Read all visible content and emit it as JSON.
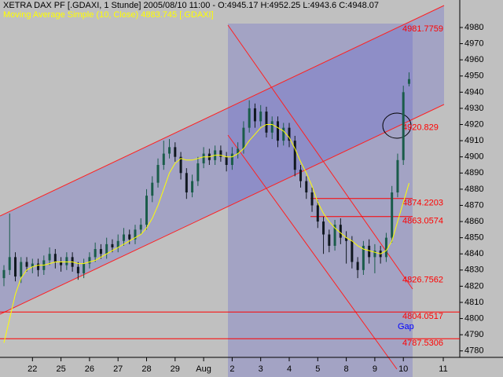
{
  "chart_data": {
    "type": "candlestick",
    "title": "XETRA DAX PF [.GDAXI, 1 Stunde] 2005/08/10 11:00 - O:4945.17 H:4952.25 L:4943.6 C:4948.07",
    "subtitle": "Moving Average Simple (10, Close) 4883.745 [.GDAXI]",
    "categories": [
      null,
      null,
      null,
      null,
      null,
      "22",
      null,
      null,
      null,
      null,
      "25",
      null,
      null,
      null,
      null,
      "26",
      null,
      null,
      null,
      null,
      "27",
      null,
      null,
      null,
      null,
      "28",
      null,
      null,
      null,
      null,
      "29",
      null,
      null,
      null,
      null,
      "Aug",
      null,
      null,
      null,
      null,
      "2",
      null,
      null,
      null,
      null,
      "3",
      null,
      null,
      null,
      null,
      "4",
      null,
      null,
      null,
      null,
      "5",
      null,
      null,
      null,
      null,
      "8",
      null,
      null,
      null,
      null,
      "9",
      null,
      null,
      null,
      null,
      "10",
      null,
      null,
      null,
      null,
      null,
      null,
      "11",
      null
    ],
    "open": [
      4825,
      4830,
      4838,
      4826,
      4835,
      4832,
      4834,
      4830,
      4836,
      4840,
      4835,
      4833,
      4838,
      4832,
      4828,
      4834,
      4838,
      4843,
      4840,
      4846,
      4844,
      4848,
      4852,
      4849,
      4855,
      4858,
      4876,
      4884,
      4895,
      4902,
      4906,
      4900,
      4890,
      4878,
      4885,
      4896,
      4902,
      4898,
      4904,
      4900,
      4895,
      4902,
      4905,
      4918,
      4930,
      4922,
      4928,
      4915,
      4922,
      4910,
      4918,
      4910,
      4892,
      4885,
      4878,
      4870,
      4860,
      4852,
      4845,
      4858,
      4850,
      4848,
      4835,
      4830,
      4845,
      4838,
      4842,
      4838,
      4850,
      4878,
      4898,
      4945.17,
      null,
      null,
      null,
      null,
      null,
      null,
      null
    ],
    "high": [
      4833,
      4865,
      4841,
      4838,
      4838,
      4837,
      4837,
      4839,
      4844,
      4843,
      4838,
      4841,
      4841,
      4835,
      4837,
      4841,
      4847,
      4846,
      4850,
      4849,
      4852,
      4856,
      4855,
      4858,
      4862,
      4880,
      4888,
      4899,
      4910,
      4911,
      4909,
      4903,
      4893,
      4889,
      4900,
      4906,
      4905,
      4907,
      4907,
      4903,
      4906,
      4909,
      4922,
      4935,
      4933,
      4932,
      4931,
      4925,
      4925,
      4921,
      4921,
      4913,
      4895,
      4888,
      4881,
      4873,
      4863,
      4855,
      4861,
      4862,
      4854,
      4851,
      4838,
      4848,
      4849,
      4846,
      4845,
      4853,
      4882,
      4902,
      4944,
      4952.25,
      null,
      null,
      null,
      null,
      null,
      null,
      null
    ],
    "low": [
      4820,
      4827,
      4823,
      4822,
      4829,
      4828,
      4826,
      4827,
      4833,
      4831,
      4829,
      4830,
      4829,
      4824,
      4825,
      4831,
      4835,
      4837,
      4837,
      4841,
      4841,
      4845,
      4846,
      4846,
      4852,
      4855,
      4872,
      4881,
      4892,
      4899,
      4897,
      4886,
      4874,
      4875,
      4882,
      4893,
      4895,
      4895,
      4897,
      4891,
      4892,
      4899,
      4902,
      4915,
      4918,
      4919,
      4912,
      4911,
      4906,
      4907,
      4906,
      4888,
      4881,
      4874,
      4866,
      4856,
      4840,
      4841,
      4842,
      4846,
      4834,
      4831,
      4825,
      4827,
      4834,
      4828,
      4834,
      4835,
      4847,
      4875,
      4895,
      4943.6,
      null,
      null,
      null,
      null,
      null,
      null,
      null
    ],
    "close": [
      4830,
      4838,
      4826,
      4835,
      4832,
      4834,
      4830,
      4836,
      4840,
      4835,
      4833,
      4838,
      4832,
      4828,
      4834,
      4838,
      4843,
      4840,
      4846,
      4844,
      4848,
      4852,
      4849,
      4855,
      4858,
      4876,
      4884,
      4895,
      4902,
      4906,
      4900,
      4890,
      4878,
      4885,
      4896,
      4902,
      4898,
      4904,
      4900,
      4895,
      4902,
      4905,
      4918,
      4930,
      4922,
      4928,
      4915,
      4922,
      4910,
      4918,
      4910,
      4892,
      4885,
      4878,
      4870,
      4860,
      4852,
      4845,
      4858,
      4850,
      4848,
      4835,
      4830,
      4845,
      4838,
      4842,
      4838,
      4850,
      4878,
      4898,
      4940,
      4948.07,
      null,
      null,
      null,
      null,
      null,
      null,
      null
    ],
    "up_color": "#1a5c4a",
    "down_color": "#101820",
    "ma": {
      "color": "#ffff00",
      "values": [
        4785,
        4800,
        4815,
        4825,
        4830,
        4832,
        4833,
        4833,
        4834,
        4835,
        4835,
        4835,
        4835,
        4834,
        4834,
        4835,
        4836,
        4838,
        4840,
        4842,
        4844,
        4846,
        4848,
        4850,
        4852,
        4856,
        4862,
        4870,
        4880,
        4890,
        4896,
        4899,
        4898,
        4898,
        4899,
        4900,
        4900,
        4901,
        4901,
        4900,
        4900,
        4902,
        4905,
        4910,
        4914,
        4918,
        4920,
        4920,
        4918,
        4916,
        4912,
        4905,
        4897,
        4890,
        4882,
        4872,
        4865,
        4860,
        4856,
        4853,
        4850,
        4848,
        4845,
        4843,
        4842,
        4841,
        4840,
        4842,
        4848,
        4860,
        4872,
        4883.745,
        null,
        null,
        null,
        null,
        null,
        null,
        null
      ]
    },
    "levels": [
      {
        "value": 4981.7759,
        "line": "none"
      },
      {
        "value": 4920.829,
        "line": "none"
      },
      {
        "value": 4874.2203,
        "line": "partial"
      },
      {
        "value": 4863.0574,
        "line": "partial"
      },
      {
        "value": 4826.7562,
        "line": "none"
      },
      {
        "value": 4804.0517,
        "line": "full"
      },
      {
        "value": 4787.5306,
        "line": "full"
      }
    ],
    "level_color": "#ff0000",
    "gap_label": "Gap",
    "ylim": [
      4776,
      4997
    ],
    "yticks": [
      4780,
      4790,
      4800,
      4810,
      4820,
      4830,
      4840,
      4850,
      4860,
      4870,
      4880,
      4890,
      4900,
      4910,
      4920,
      4930,
      4940,
      4950,
      4960,
      4970,
      4980
    ]
  }
}
